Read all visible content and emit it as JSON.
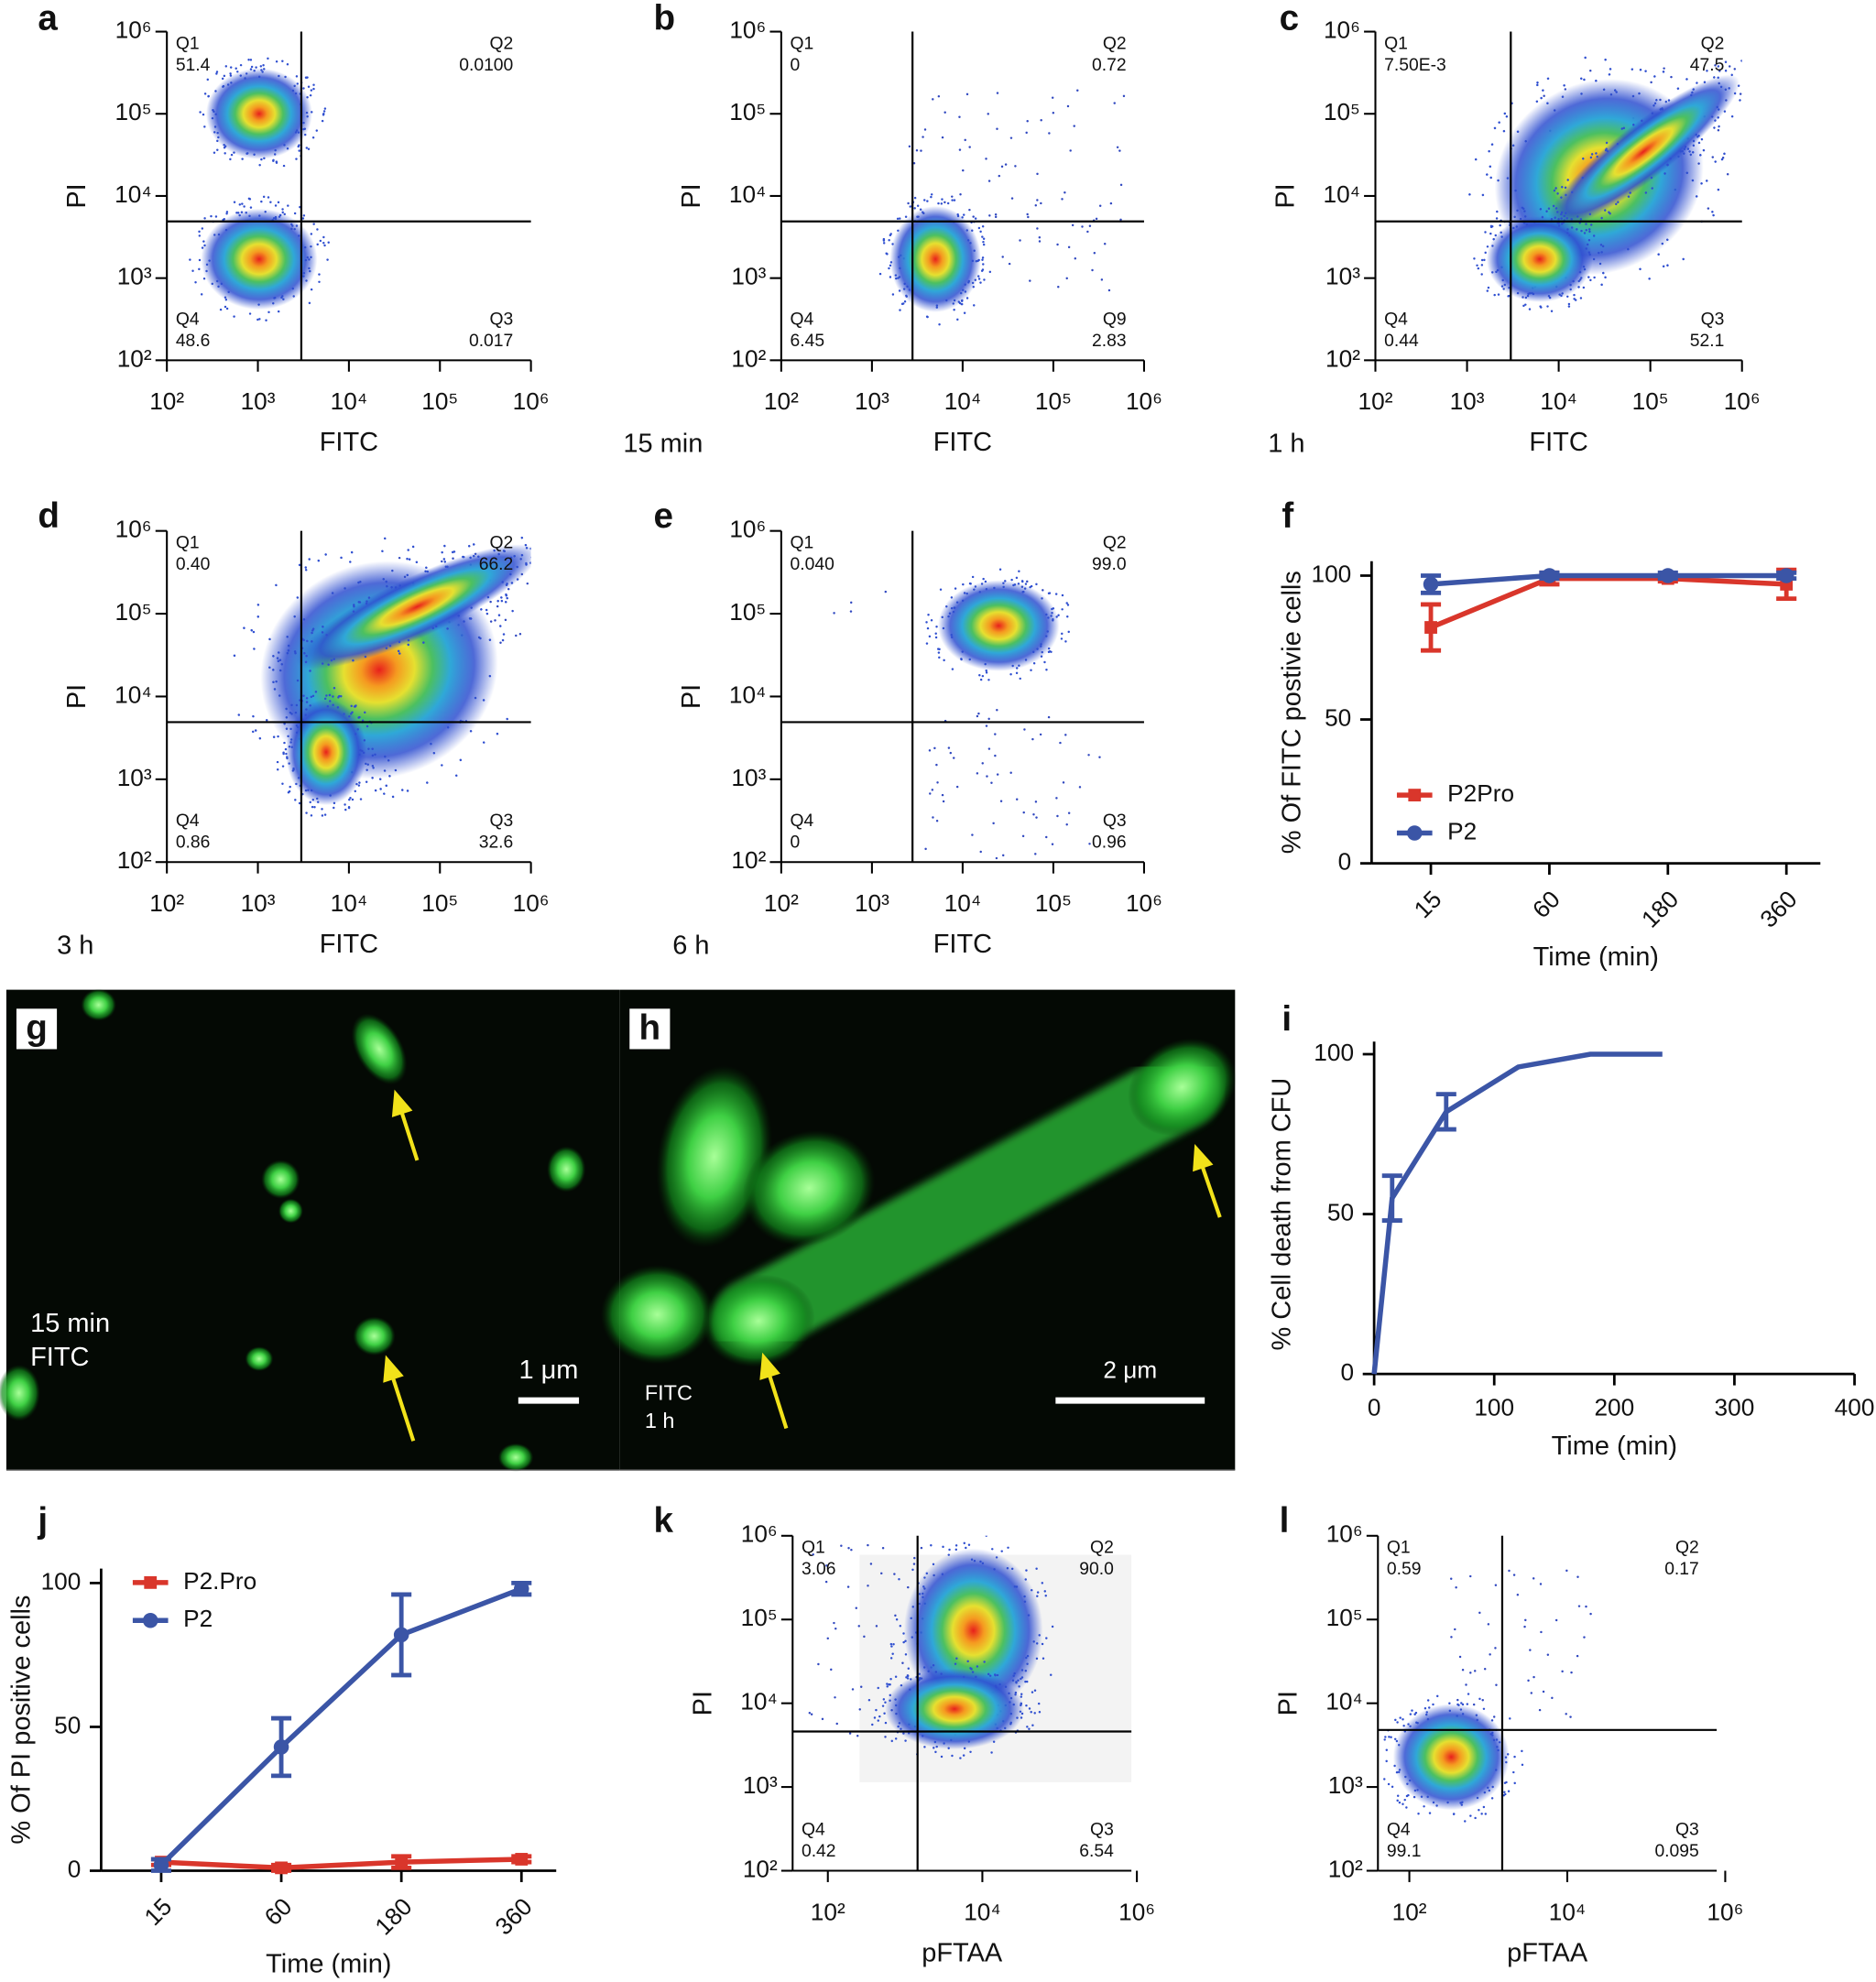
{
  "chart_data": [
    {
      "panel": "a",
      "type": "density",
      "xlabel": "FITC",
      "ylabel": "PI",
      "log": true,
      "xlim": [
        100,
        1000000
      ],
      "ylim": [
        100,
        1000000
      ],
      "xticks": [
        {
          "value": 100,
          "label": "10²"
        },
        {
          "value": 1000,
          "label": "10³"
        },
        {
          "value": 10000,
          "label": "10⁴"
        },
        {
          "value": 100000,
          "label": "10⁵"
        },
        {
          "value": 1000000,
          "label": "10⁶"
        }
      ],
      "yticks": [
        {
          "value": 100,
          "label": "10²"
        },
        {
          "value": 1000,
          "label": "10³"
        },
        {
          "value": 10000,
          "label": "10⁴"
        },
        {
          "value": 100000,
          "label": "10⁵"
        },
        {
          "value": 1000000,
          "label": "10⁶"
        }
      ],
      "gate": {
        "x": 3000,
        "y": 4900
      },
      "quadrants": [
        {
          "name": "Q1",
          "value": "51.4"
        },
        {
          "name": "Q2",
          "value": "0.0100"
        },
        {
          "name": "Q3",
          "value": "0.017"
        },
        {
          "name": "Q4",
          "value": "48.6"
        }
      ]
    },
    {
      "panel": "b",
      "type": "density",
      "caption": "15 min",
      "xlabel": "FITC",
      "ylabel": "PI",
      "log": true,
      "xlim": [
        100,
        1000000
      ],
      "ylim": [
        100,
        1000000
      ],
      "xticks": [
        {
          "value": 100,
          "label": "10²"
        },
        {
          "value": 1000,
          "label": "10³"
        },
        {
          "value": 10000,
          "label": "10⁴"
        },
        {
          "value": 100000,
          "label": "10⁵"
        },
        {
          "value": 1000000,
          "label": "10⁶"
        }
      ],
      "yticks": [
        {
          "value": 100,
          "label": "10²"
        },
        {
          "value": 1000,
          "label": "10³"
        },
        {
          "value": 10000,
          "label": "10⁴"
        },
        {
          "value": 100000,
          "label": "10⁵"
        },
        {
          "value": 1000000,
          "label": "10⁶"
        }
      ],
      "gate": {
        "x": 2800,
        "y": 4900
      },
      "quadrants": [
        {
          "name": "Q1",
          "value": "0"
        },
        {
          "name": "Q2",
          "value": "0.72"
        },
        {
          "name": "Q9",
          "value": "2.83"
        },
        {
          "name": "Q4",
          "value": "6.45"
        }
      ]
    },
    {
      "panel": "c",
      "type": "density",
      "caption": "1 h",
      "xlabel": "FITC",
      "ylabel": "PI",
      "log": true,
      "xlim": [
        100,
        1000000
      ],
      "ylim": [
        100,
        1000000
      ],
      "xticks": [
        {
          "value": 100,
          "label": "10²"
        },
        {
          "value": 1000,
          "label": "10³"
        },
        {
          "value": 10000,
          "label": "10⁴"
        },
        {
          "value": 100000,
          "label": "10⁵"
        },
        {
          "value": 1000000,
          "label": "10⁶"
        }
      ],
      "yticks": [
        {
          "value": 100,
          "label": "10²"
        },
        {
          "value": 1000,
          "label": "10³"
        },
        {
          "value": 10000,
          "label": "10⁴"
        },
        {
          "value": 100000,
          "label": "10⁵"
        },
        {
          "value": 1000000,
          "label": "10⁶"
        }
      ],
      "gate": {
        "x": 3000,
        "y": 4900
      },
      "quadrants": [
        {
          "name": "Q1",
          "value": "7.50E-3"
        },
        {
          "name": "Q2",
          "value": "47.5"
        },
        {
          "name": "Q3",
          "value": "52.1"
        },
        {
          "name": "Q4",
          "value": "0.44"
        }
      ]
    },
    {
      "panel": "d",
      "type": "density",
      "caption": "3 h",
      "xlabel": "FITC",
      "ylabel": "PI",
      "log": true,
      "xlim": [
        100,
        1000000
      ],
      "ylim": [
        100,
        1000000
      ],
      "xticks": [
        {
          "value": 100,
          "label": "10²"
        },
        {
          "value": 1000,
          "label": "10³"
        },
        {
          "value": 10000,
          "label": "10⁴"
        },
        {
          "value": 100000,
          "label": "10⁵"
        },
        {
          "value": 1000000,
          "label": "10⁶"
        }
      ],
      "yticks": [
        {
          "value": 100,
          "label": "10²"
        },
        {
          "value": 1000,
          "label": "10³"
        },
        {
          "value": 10000,
          "label": "10⁴"
        },
        {
          "value": 100000,
          "label": "10⁵"
        },
        {
          "value": 1000000,
          "label": "10⁶"
        }
      ],
      "gate": {
        "x": 3000,
        "y": 4900
      },
      "quadrants": [
        {
          "name": "Q1",
          "value": "0.40"
        },
        {
          "name": "Q2",
          "value": "66.2"
        },
        {
          "name": "Q3",
          "value": "32.6"
        },
        {
          "name": "Q4",
          "value": "0.86"
        }
      ]
    },
    {
      "panel": "e",
      "type": "density",
      "caption": "6 h",
      "xlabel": "FITC",
      "ylabel": "PI",
      "log": true,
      "xlim": [
        100,
        1000000
      ],
      "ylim": [
        100,
        1000000
      ],
      "xticks": [
        {
          "value": 100,
          "label": "10²"
        },
        {
          "value": 1000,
          "label": "10³"
        },
        {
          "value": 10000,
          "label": "10⁴"
        },
        {
          "value": 100000,
          "label": "10⁵"
        },
        {
          "value": 1000000,
          "label": "10⁶"
        }
      ],
      "yticks": [
        {
          "value": 100,
          "label": "10²"
        },
        {
          "value": 1000,
          "label": "10³"
        },
        {
          "value": 10000,
          "label": "10⁴"
        },
        {
          "value": 100000,
          "label": "10⁵"
        },
        {
          "value": 1000000,
          "label": "10⁶"
        }
      ],
      "gate": {
        "x": 2800,
        "y": 4900
      },
      "quadrants": [
        {
          "name": "Q1",
          "value": "0.040"
        },
        {
          "name": "Q2",
          "value": "99.0"
        },
        {
          "name": "Q3",
          "value": "0.96"
        },
        {
          "name": "Q4",
          "value": "0"
        }
      ]
    },
    {
      "panel": "f",
      "type": "line",
      "xlabel": "Time (min)",
      "ylabel": "% Of FITC postivie cells",
      "categories": [
        "15",
        "60",
        "180",
        "360"
      ],
      "ylim": [
        0,
        105
      ],
      "yticks": [
        0,
        50,
        100
      ],
      "series": [
        {
          "name": "P2Pro",
          "color": "#d9362b",
          "values": [
            82,
            99,
            99,
            97
          ],
          "errors": [
            8,
            2,
            1,
            5
          ]
        },
        {
          "name": "P2",
          "color": "#3b55a6",
          "values": [
            97,
            100,
            100,
            100
          ],
          "errors": [
            3,
            1,
            1,
            1
          ]
        }
      ]
    },
    {
      "panel": "g",
      "type": "image",
      "texts": [
        "15 min",
        "FITC"
      ],
      "scale_bar": "1 μm"
    },
    {
      "panel": "h",
      "type": "image",
      "texts": [
        "FITC",
        "1 h"
      ],
      "scale_bar": "2 μm"
    },
    {
      "panel": "i",
      "type": "xyline",
      "xlabel": "Time (min)",
      "ylabel": "% Cell death from CFU",
      "color": "#3b55a6",
      "x": [
        0,
        15,
        60,
        120,
        180,
        240
      ],
      "values": [
        0,
        55,
        82,
        96,
        100,
        100
      ],
      "errors": [
        null,
        7,
        5.5,
        null,
        null,
        null
      ],
      "xlim": [
        0,
        400
      ],
      "xticks": [
        0,
        100,
        200,
        300,
        400
      ],
      "ylim": [
        0,
        100
      ],
      "yticks": [
        0,
        50,
        100
      ]
    },
    {
      "panel": "j",
      "type": "line",
      "xlabel": "Time (min)",
      "ylabel": "% Of PI positive cells",
      "categories": [
        "15",
        "60",
        "180",
        "360"
      ],
      "ylim": [
        0,
        105
      ],
      "yticks": [
        0,
        50,
        100
      ],
      "series": [
        {
          "name": "P2.Pro",
          "color": "#d9362b",
          "values": [
            3,
            1,
            3,
            4
          ],
          "errors": [
            1,
            1,
            2,
            1
          ]
        },
        {
          "name": "P2",
          "color": "#3b55a6",
          "values": [
            2,
            43,
            82,
            98
          ],
          "errors": [
            2,
            10,
            14,
            2
          ]
        }
      ]
    },
    {
      "panel": "k",
      "type": "density",
      "xlabel": "pFTAA",
      "ylabel": "PI",
      "log": true,
      "xlim": [
        35,
        850000
      ],
      "ylim": [
        100,
        1000000
      ],
      "xticks": [
        {
          "value": 100,
          "label": "10²"
        },
        {
          "value": 10000,
          "label": "10⁴"
        },
        {
          "value": 1000000,
          "label": "10⁶"
        }
      ],
      "yticks": [
        {
          "value": 100,
          "label": "10²"
        },
        {
          "value": 1000,
          "label": "10³"
        },
        {
          "value": 10000,
          "label": "10⁴"
        },
        {
          "value": 100000,
          "label": "10⁵"
        },
        {
          "value": 1000000,
          "label": "10⁶"
        }
      ],
      "gate": {
        "x": 1450,
        "y": 4600
      },
      "quadrants": [
        {
          "name": "Q1",
          "value": "3.06"
        },
        {
          "name": "Q2",
          "value": "90.0"
        },
        {
          "name": "Q3",
          "value": "6.54"
        },
        {
          "name": "Q4",
          "value": "0.42"
        }
      ]
    },
    {
      "panel": "l",
      "type": "density",
      "xlabel": "pFTAA",
      "ylabel": "PI",
      "log": true,
      "xlim": [
        40,
        780000
      ],
      "ylim": [
        100,
        1000000
      ],
      "xticks": [
        {
          "value": 100,
          "label": "10²"
        },
        {
          "value": 10000,
          "label": "10⁴"
        },
        {
          "value": 1000000,
          "label": "10⁶"
        }
      ],
      "yticks": [
        {
          "value": 100,
          "label": "10²"
        },
        {
          "value": 1000,
          "label": "10³"
        },
        {
          "value": 10000,
          "label": "10⁴"
        },
        {
          "value": 100000,
          "label": "10⁵"
        },
        {
          "value": 1000000,
          "label": "10⁶"
        }
      ],
      "gate": {
        "x": 1500,
        "y": 4800
      },
      "quadrants": [
        {
          "name": "Q1",
          "value": "0.59"
        },
        {
          "name": "Q2",
          "value": "0.17"
        },
        {
          "name": "Q3",
          "value": "0.095"
        },
        {
          "name": "Q4",
          "value": "99.1"
        }
      ]
    }
  ]
}
